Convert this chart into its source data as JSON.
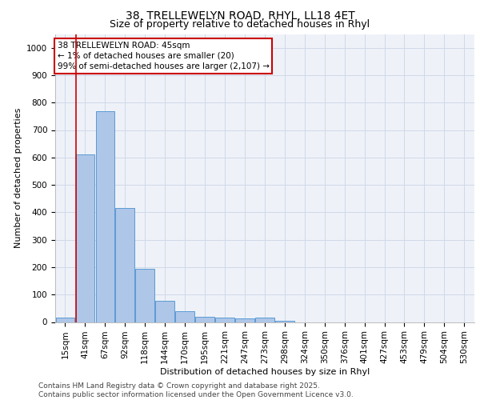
{
  "title_line1": "38, TRELLEWELYN ROAD, RHYL, LL18 4ET",
  "title_line2": "Size of property relative to detached houses in Rhyl",
  "xlabel": "Distribution of detached houses by size in Rhyl",
  "ylabel": "Number of detached properties",
  "categories": [
    "15sqm",
    "41sqm",
    "67sqm",
    "92sqm",
    "118sqm",
    "144sqm",
    "170sqm",
    "195sqm",
    "221sqm",
    "247sqm",
    "273sqm",
    "298sqm",
    "324sqm",
    "350sqm",
    "376sqm",
    "401sqm",
    "427sqm",
    "453sqm",
    "479sqm",
    "504sqm",
    "530sqm"
  ],
  "values": [
    15,
    610,
    770,
    415,
    193,
    78,
    40,
    20,
    17,
    12,
    15,
    5,
    0,
    0,
    0,
    0,
    0,
    0,
    0,
    0,
    0
  ],
  "bar_color": "#aec6e8",
  "bar_edge_color": "#5b9bd5",
  "vline_x_index": 1,
  "annotation_text": "38 TRELLEWELYN ROAD: 45sqm\n← 1% of detached houses are smaller (20)\n99% of semi-detached houses are larger (2,107) →",
  "annotation_box_facecolor": "#ffffff",
  "annotation_box_edgecolor": "#cc0000",
  "annotation_text_color": "#000000",
  "vline_color": "#cc0000",
  "grid_color": "#d0d8e8",
  "axes_facecolor": "#eef2f8",
  "fig_facecolor": "#ffffff",
  "ylim": [
    0,
    1050
  ],
  "yticks": [
    0,
    100,
    200,
    300,
    400,
    500,
    600,
    700,
    800,
    900,
    1000
  ],
  "footer_line1": "Contains HM Land Registry data © Crown copyright and database right 2025.",
  "footer_line2": "Contains public sector information licensed under the Open Government Licence v3.0.",
  "title_fontsize": 10,
  "subtitle_fontsize": 9,
  "axis_label_fontsize": 8,
  "tick_fontsize": 7.5,
  "annotation_fontsize": 7.5,
  "footer_fontsize": 6.5
}
